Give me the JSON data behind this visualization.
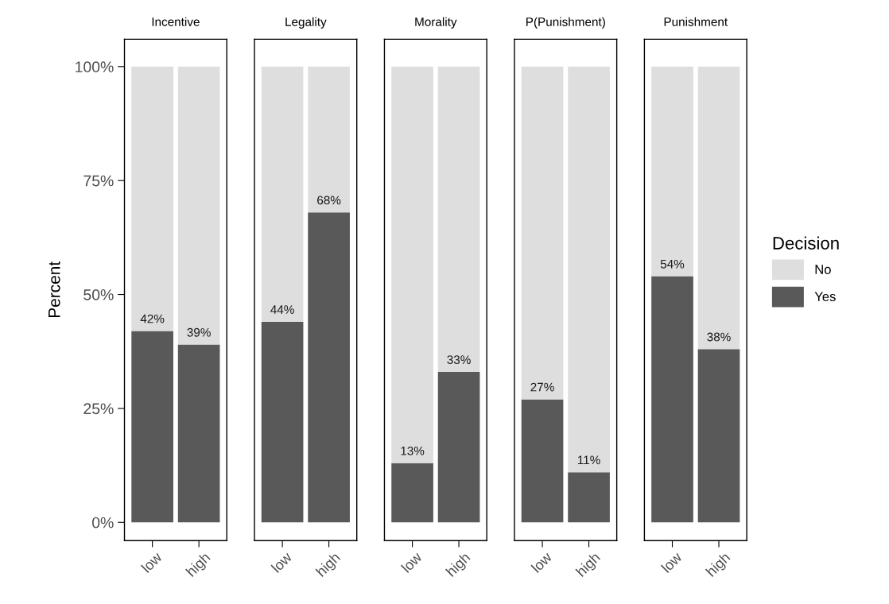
{
  "chart_data": [
    {
      "type": "bar",
      "title": "Incentive",
      "ylabel": "Percent",
      "legend": "right",
      "legend_title": "Decision",
      "stacked": true,
      "categories": [
        "low",
        "high"
      ],
      "ylim": [
        -4,
        106
      ],
      "yticks": [
        {
          "value": 0,
          "label": "0%"
        },
        {
          "value": 25,
          "label": "25%"
        },
        {
          "value": 50,
          "label": "50%"
        },
        {
          "value": 75,
          "label": "75%"
        },
        {
          "value": 100,
          "label": "100%"
        }
      ],
      "series": [
        {
          "name": "Yes",
          "color": "#595959",
          "values": [
            42,
            39
          ],
          "value_labels": [
            "42%",
            "39%"
          ]
        },
        {
          "name": "No",
          "color": "#dedede",
          "values": [
            58,
            61
          ]
        }
      ]
    },
    {
      "type": "bar",
      "title": "Legality",
      "stacked": true,
      "tick_labels": "x",
      "categories": [
        "low",
        "high"
      ],
      "ylim": [
        -4,
        106
      ],
      "series": [
        {
          "color": "#595959",
          "values": [
            44,
            68
          ],
          "value_labels": [
            "44%",
            "68%"
          ]
        },
        {
          "color": "#dedede",
          "values": [
            56,
            32
          ]
        }
      ]
    },
    {
      "type": "bar",
      "title": "Morality",
      "stacked": true,
      "tick_labels": "x",
      "categories": [
        "low",
        "high"
      ],
      "ylim": [
        -4,
        106
      ],
      "series": [
        {
          "color": "#595959",
          "values": [
            13,
            33
          ],
          "value_labels": [
            "13%",
            "33%"
          ]
        },
        {
          "color": "#dedede",
          "values": [
            87,
            67
          ]
        }
      ]
    },
    {
      "type": "bar",
      "title": "P(Punishment)",
      "stacked": true,
      "tick_labels": "x",
      "categories": [
        "low",
        "high"
      ],
      "ylim": [
        -4,
        106
      ],
      "series": [
        {
          "color": "#595959",
          "values": [
            27,
            11
          ],
          "value_labels": [
            "27%",
            "11%"
          ]
        },
        {
          "color": "#dedede",
          "values": [
            73,
            89
          ]
        }
      ]
    },
    {
      "type": "bar",
      "title": "Punishment",
      "stacked": true,
      "tick_labels": "x",
      "categories": [
        "low",
        "high"
      ],
      "ylim": [
        -4,
        106
      ],
      "series": [
        {
          "color": "#595959",
          "values": [
            54,
            38
          ],
          "value_labels": [
            "54%",
            "38%"
          ]
        },
        {
          "color": "#dedede",
          "values": [
            46,
            62
          ]
        }
      ]
    }
  ]
}
